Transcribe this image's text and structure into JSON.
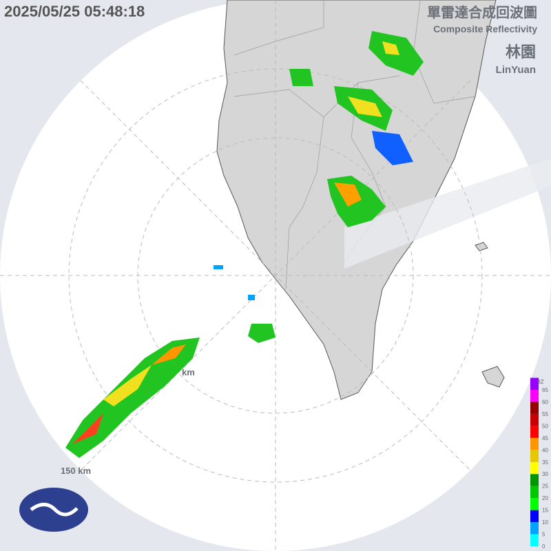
{
  "header": {
    "timestamp": "2025/05/25 05:48:18",
    "title_zh": "單雷達合成回波圖",
    "title_en": "Composite Reflectivity",
    "station_zh": "林園",
    "station_en": "LinYuan"
  },
  "rings": {
    "inner_label": "km",
    "outer_label": "150 km"
  },
  "legend": {
    "unit": "dBZ",
    "ticks": [
      0,
      5,
      10,
      15,
      20,
      25,
      30,
      35,
      40,
      45,
      50,
      55,
      60,
      65
    ],
    "colors": [
      "#00ffff",
      "#00a3ff",
      "#0000ff",
      "#00ff00",
      "#00c800",
      "#009600",
      "#ffff00",
      "#e6c800",
      "#ff9600",
      "#ff0000",
      "#c80000",
      "#960000",
      "#ff00ff",
      "#9600ff"
    ]
  }
}
